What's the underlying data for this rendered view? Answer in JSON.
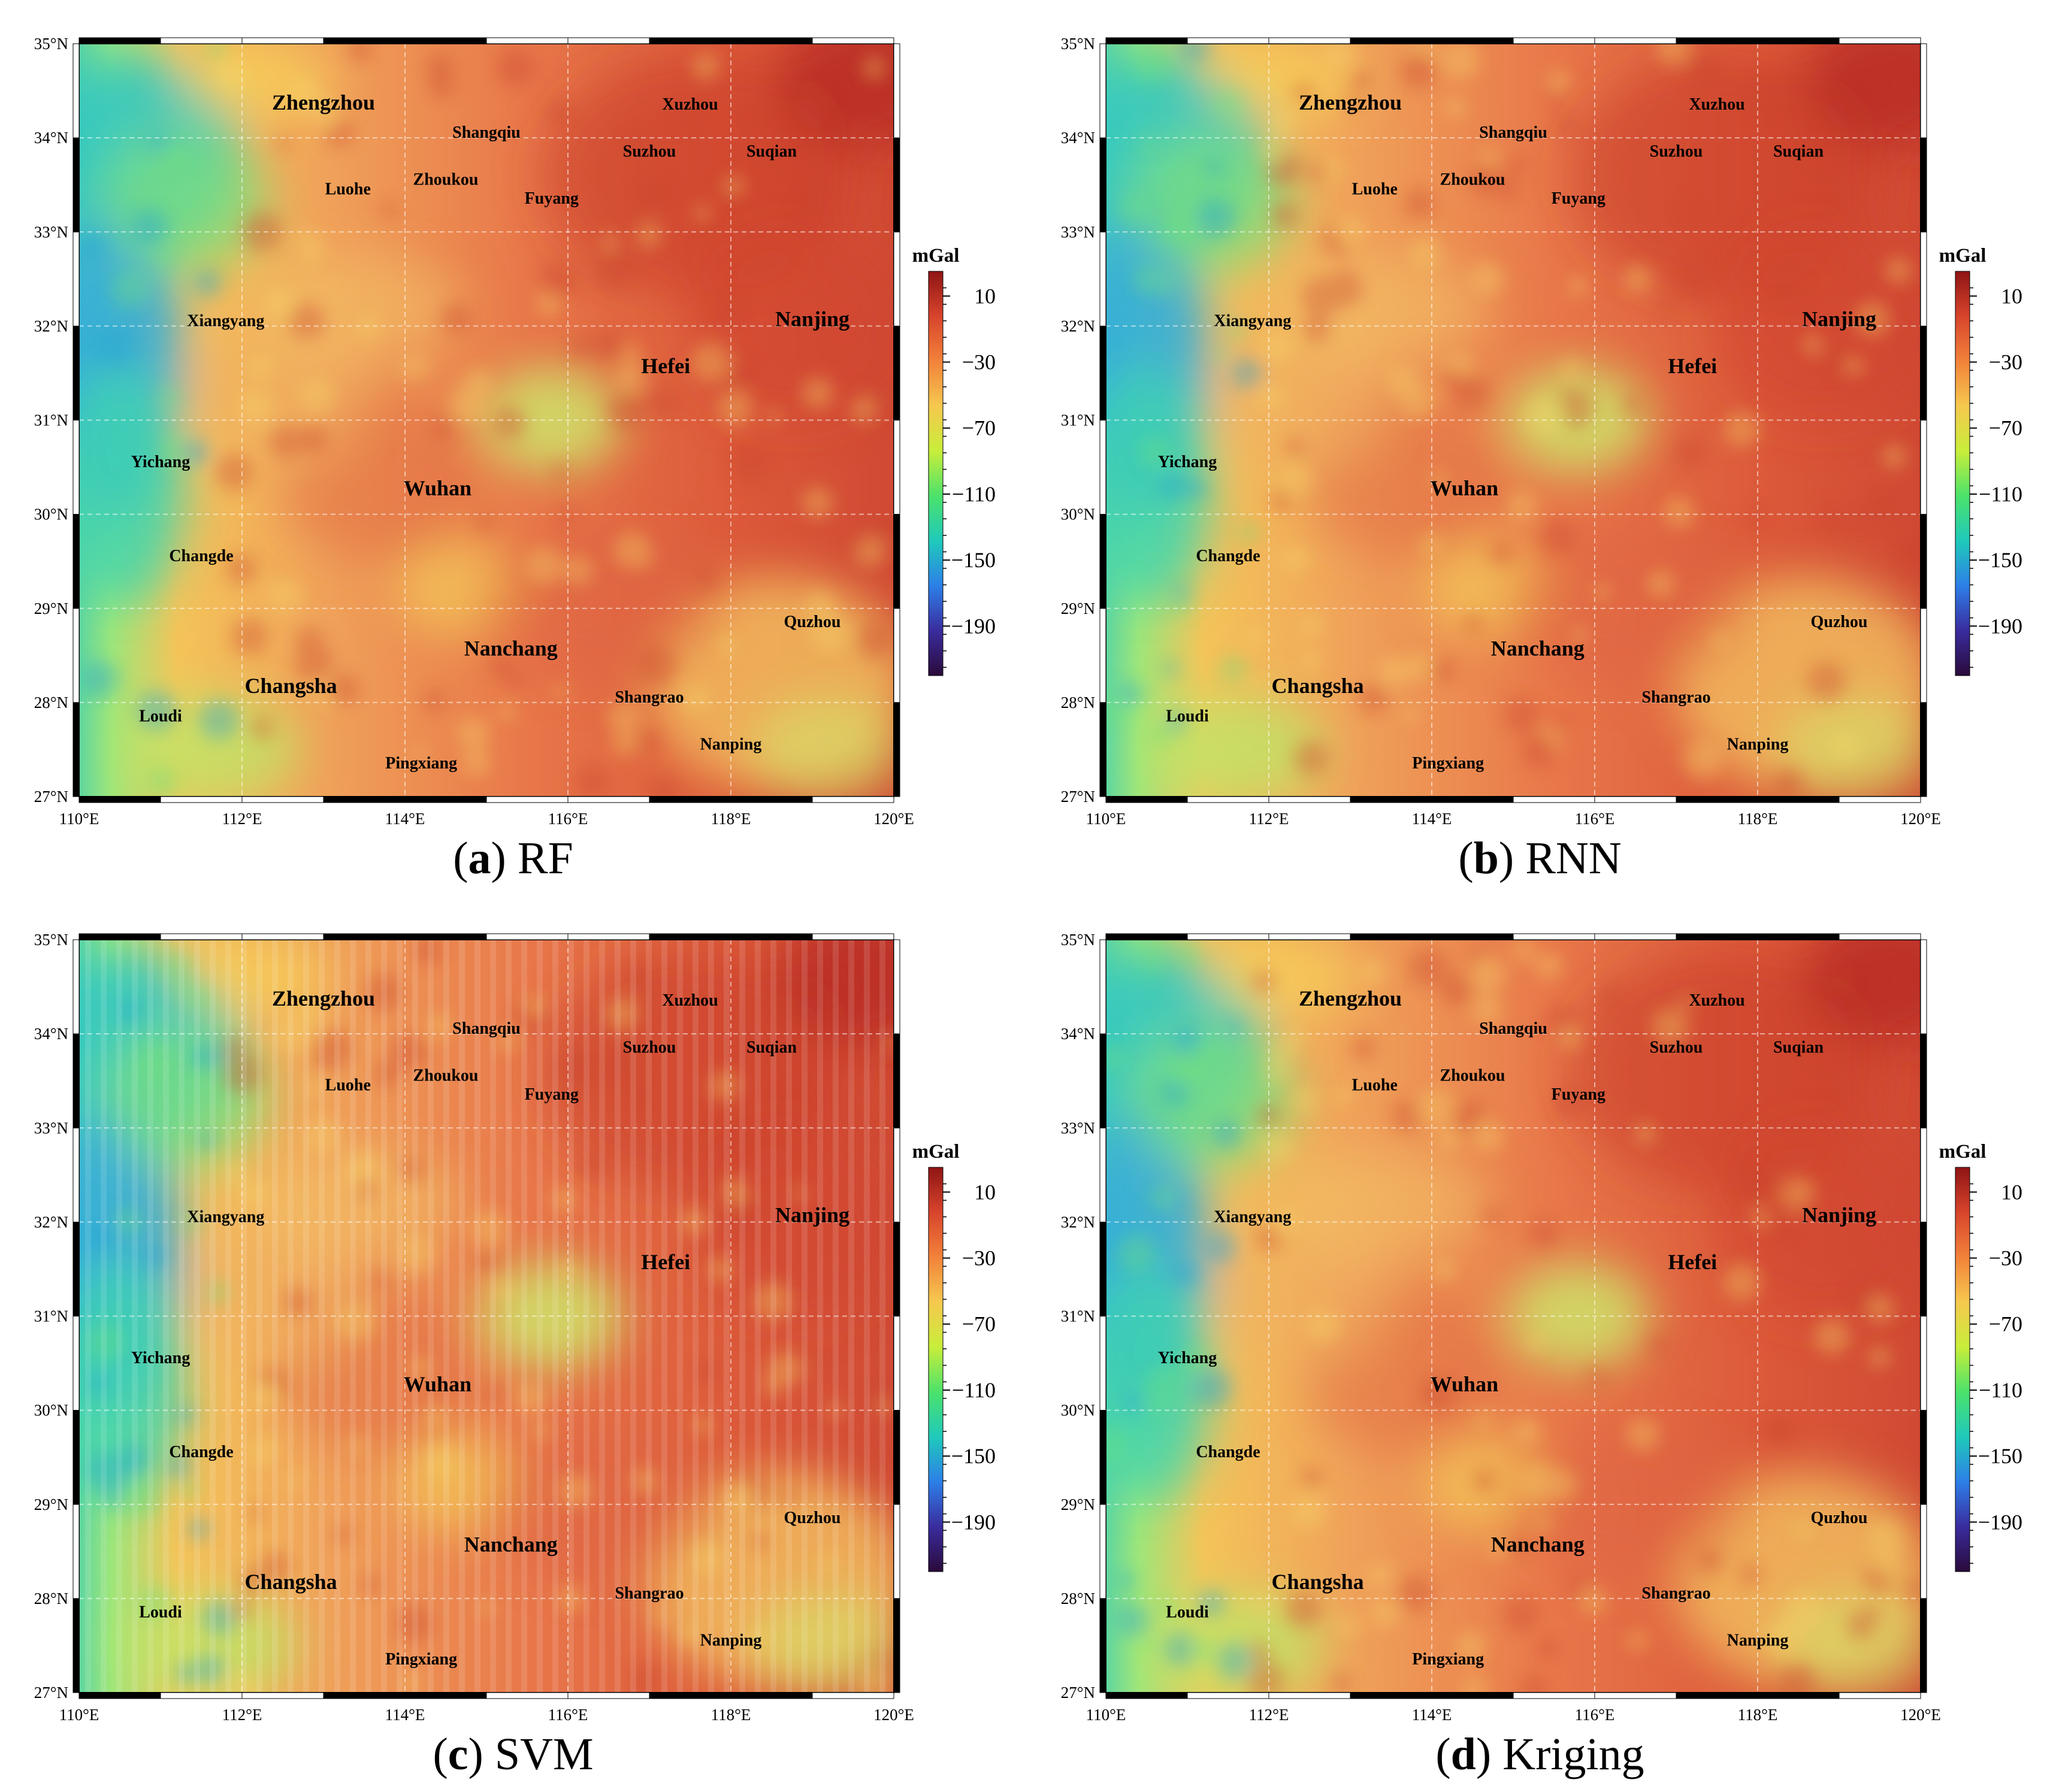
{
  "figure": {
    "panels": [
      {
        "letter": "a",
        "method": "RF"
      },
      {
        "letter": "b",
        "method": "RNN"
      },
      {
        "letter": "c",
        "method": "SVM"
      },
      {
        "letter": "d",
        "method": "Kriging"
      }
    ]
  },
  "colorbar": {
    "unit": "mGal",
    "ticks": [
      10,
      -30,
      -70,
      -110,
      -150,
      -190
    ],
    "tick_labels": [
      "10",
      "−30",
      "−70",
      "−110",
      "−150",
      "−190"
    ],
    "range": [
      -220,
      25
    ],
    "colors": [
      "#2a0a3a",
      "#3a2c9e",
      "#2d7fe8",
      "#1fc9bb",
      "#4be26b",
      "#c9ee3a",
      "#f6c84e",
      "#f2823a",
      "#d8442c",
      "#8e1414"
    ]
  },
  "axes": {
    "lon_range": [
      110,
      120
    ],
    "lat_range": [
      27,
      35
    ],
    "lon_ticks": [
      110,
      112,
      114,
      116,
      118,
      120
    ],
    "lat_ticks": [
      27,
      28,
      29,
      30,
      31,
      32,
      33,
      34,
      35
    ],
    "lon_labels": [
      "110°E",
      "112°E",
      "114°E",
      "116°E",
      "118°E",
      "120°E"
    ],
    "lat_labels": [
      "27°N",
      "28°N",
      "29°N",
      "30°N",
      "31°N",
      "32°N",
      "33°N",
      "34°N",
      "35°N"
    ]
  },
  "cities": [
    {
      "name": "Zhengzhou",
      "lon": 113.0,
      "lat": 34.3,
      "size": "big"
    },
    {
      "name": "Xuzhou",
      "lon": 117.5,
      "lat": 34.3,
      "size": "small"
    },
    {
      "name": "Shangqiu",
      "lon": 115.0,
      "lat": 34.0,
      "size": "small"
    },
    {
      "name": "Suzhou",
      "lon": 117.0,
      "lat": 33.8,
      "size": "small"
    },
    {
      "name": "Suqian",
      "lon": 118.5,
      "lat": 33.8,
      "size": "small"
    },
    {
      "name": "Luohe",
      "lon": 113.3,
      "lat": 33.4,
      "size": "small"
    },
    {
      "name": "Zhoukou",
      "lon": 114.5,
      "lat": 33.5,
      "size": "small"
    },
    {
      "name": "Fuyang",
      "lon": 115.8,
      "lat": 33.3,
      "size": "small"
    },
    {
      "name": "Xiangyang",
      "lon": 111.8,
      "lat": 32.0,
      "size": "small"
    },
    {
      "name": "Nanjing",
      "lon": 119.0,
      "lat": 32.0,
      "size": "big"
    },
    {
      "name": "Hefei",
      "lon": 117.2,
      "lat": 31.5,
      "size": "big"
    },
    {
      "name": "Yichang",
      "lon": 111.0,
      "lat": 30.5,
      "size": "small"
    },
    {
      "name": "Wuhan",
      "lon": 114.4,
      "lat": 30.2,
      "size": "big"
    },
    {
      "name": "Changde",
      "lon": 111.5,
      "lat": 29.5,
      "size": "small"
    },
    {
      "name": "Quzhou",
      "lon": 119.0,
      "lat": 28.8,
      "size": "small"
    },
    {
      "name": "Nanchang",
      "lon": 115.3,
      "lat": 28.5,
      "size": "big"
    },
    {
      "name": "Changsha",
      "lon": 112.6,
      "lat": 28.1,
      "size": "big"
    },
    {
      "name": "Shangrao",
      "lon": 117.0,
      "lat": 28.0,
      "size": "small"
    },
    {
      "name": "Loudi",
      "lon": 111.0,
      "lat": 27.8,
      "size": "small"
    },
    {
      "name": "Nanping",
      "lon": 118.0,
      "lat": 27.5,
      "size": "small"
    },
    {
      "name": "Pingxiang",
      "lon": 114.2,
      "lat": 27.3,
      "size": "small"
    }
  ]
}
